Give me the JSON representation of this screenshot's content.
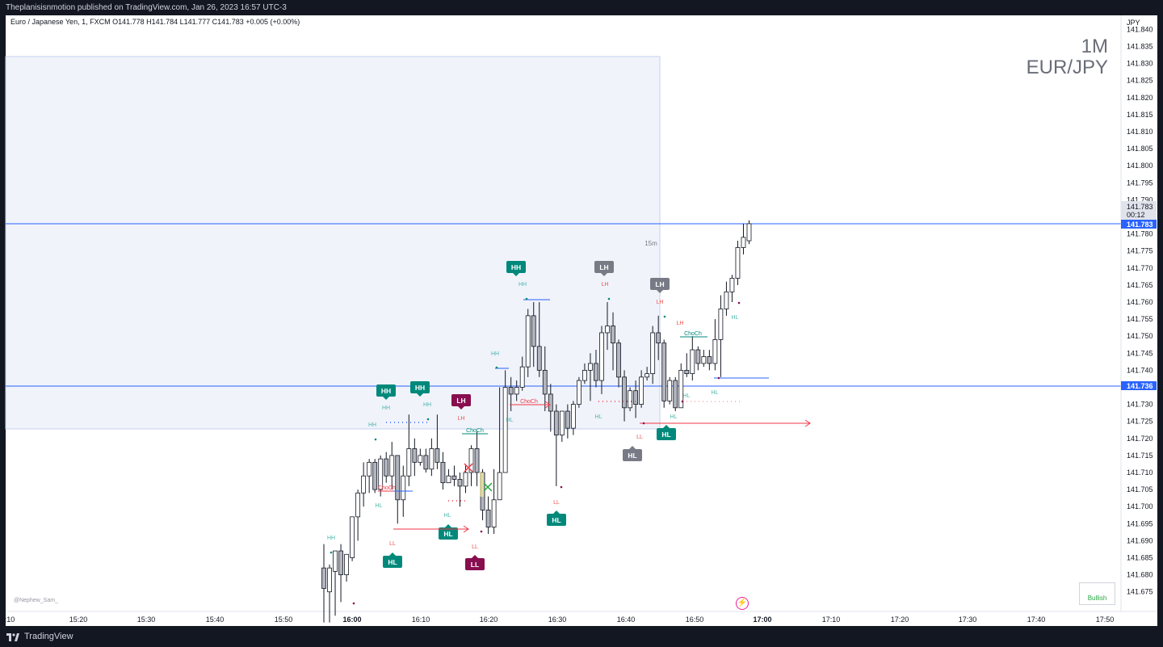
{
  "header": {
    "publish_line": "Theplanisisnmotion published on TradingView.com, Jan 26, 2023 16:57 UTC-3"
  },
  "legend": {
    "text": "Euro / Japanese Yen, 1, FXCM  O141.778  H141.784  L141.777  C141.783  +0.005 (+0.00%)"
  },
  "watermark": {
    "timeframe": "1M",
    "symbol": "EUR/JPY"
  },
  "price_axis": {
    "currency": "JPY",
    "ticks": [
      "141.840",
      "141.835",
      "141.830",
      "141.825",
      "141.820",
      "141.815",
      "141.810",
      "141.805",
      "141.800",
      "141.795",
      "141.790",
      "141.780",
      "141.775",
      "141.770",
      "141.765",
      "141.760",
      "141.755",
      "141.750",
      "141.745",
      "141.740",
      "141.730",
      "141.725",
      "141.720",
      "141.715",
      "141.710",
      "141.705",
      "141.700",
      "141.695",
      "141.690",
      "141.685",
      "141.680",
      "141.675"
    ],
    "last_price": "141.783",
    "countdown": "00:12",
    "last_price_tag": "141.783",
    "level_tag": "141.736"
  },
  "time_axis": {
    "ticks": [
      ":10",
      "15:20",
      "15:30",
      "15:40",
      "15:50",
      "16:00",
      "16:10",
      "16:20",
      "16:30",
      "16:40",
      "16:50",
      "17:00",
      "17:10",
      "17:20",
      "17:30",
      "17:40",
      "17:50"
    ]
  },
  "labels": {
    "htf_zone": "15m",
    "author": "@Nephew_Sam_",
    "bull_button": "Bullish",
    "choch": "ChoCh",
    "flash_icon": "⚡"
  },
  "tags": {
    "HH": "HH",
    "HL": "HL",
    "LH": "LH",
    "LL": "LL"
  },
  "colors": {
    "bull_tag": "#00897b",
    "bear_tag": "#880e4f",
    "neutral_tag": "#787b86",
    "level_line": "#2962ff",
    "choch": "#00897b",
    "bear_arrow": "#f23645"
  },
  "footer": {
    "brand": "TradingView"
  }
}
